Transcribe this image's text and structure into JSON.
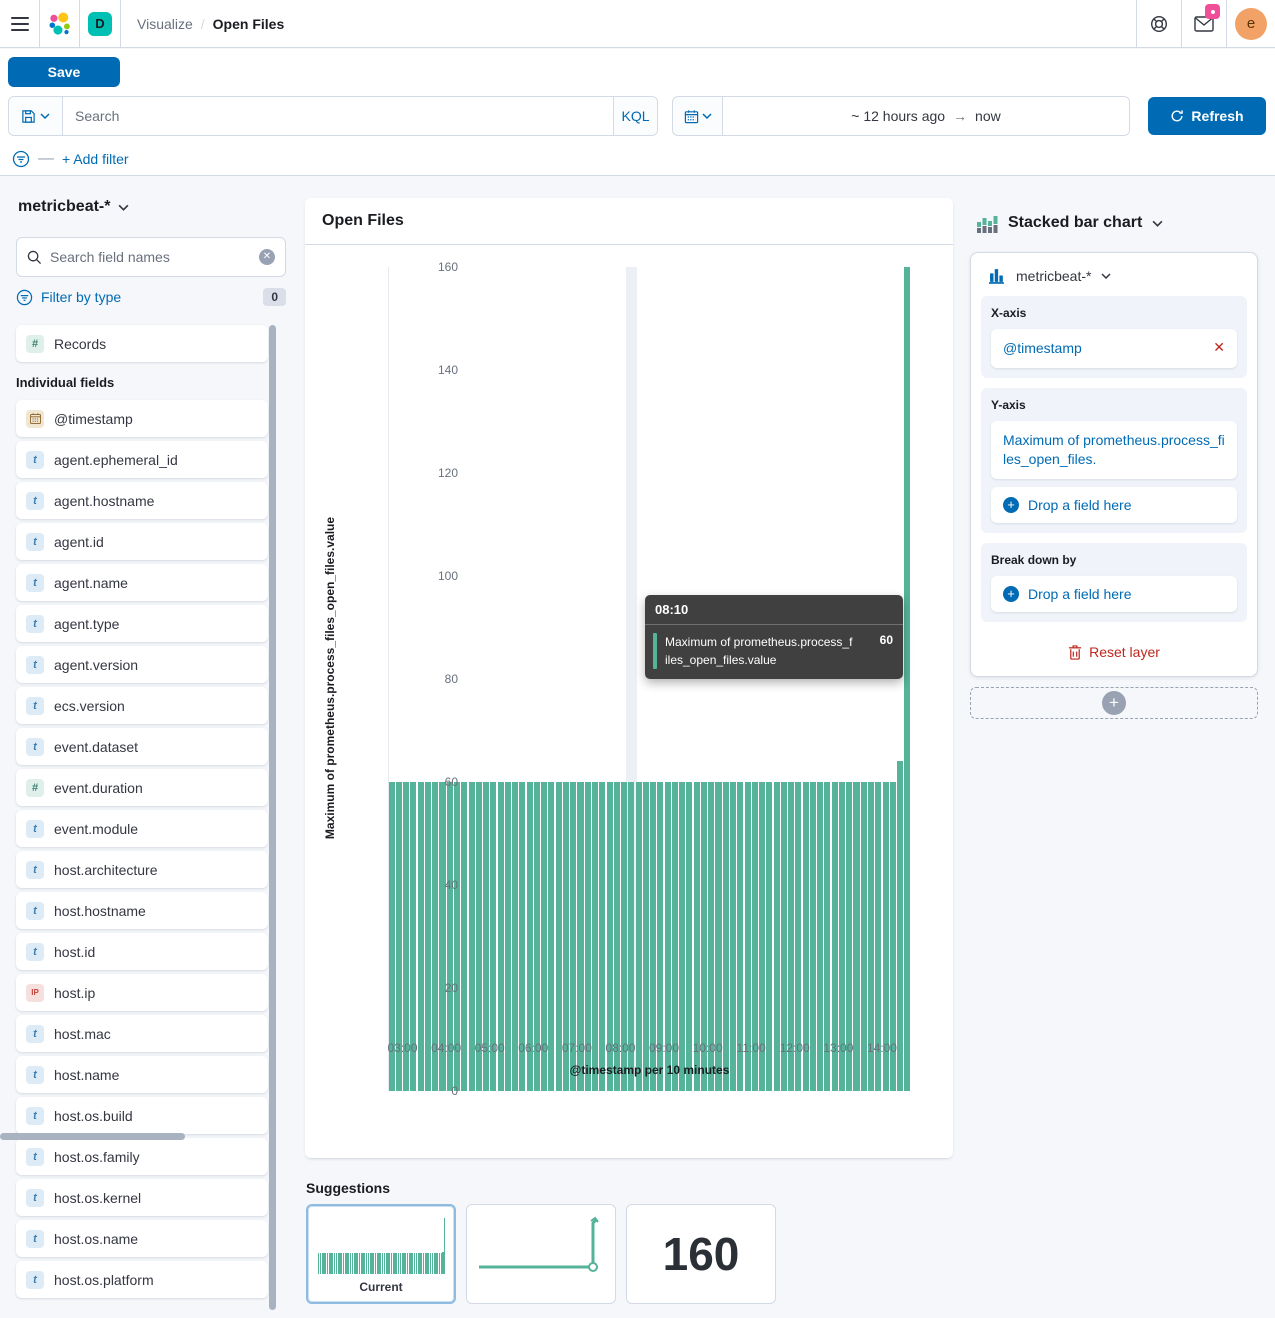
{
  "header": {
    "space_badge": "D",
    "breadcrumb": {
      "parent": "Visualize",
      "separator": "/",
      "current": "Open Files"
    },
    "avatar_initial": "e"
  },
  "toolbar": {
    "save_label": "Save",
    "search_placeholder": "Search",
    "kql_label": "KQL",
    "time_from": "~ 12 hours ago",
    "time_arrow": "→",
    "time_to": "now",
    "refresh_label": "Refresh",
    "add_filter_label": "+ Add filter"
  },
  "sidebar": {
    "index_pattern": "metricbeat-*",
    "search_placeholder": "Search field names",
    "filter_by_type_label": "Filter by type",
    "filter_count": "0",
    "records_label": "Records",
    "section_label": "Individual fields",
    "fields": [
      {
        "name": "@timestamp",
        "type": "date"
      },
      {
        "name": "agent.ephemeral_id",
        "type": "string"
      },
      {
        "name": "agent.hostname",
        "type": "string"
      },
      {
        "name": "agent.id",
        "type": "string"
      },
      {
        "name": "agent.name",
        "type": "string"
      },
      {
        "name": "agent.type",
        "type": "string"
      },
      {
        "name": "agent.version",
        "type": "string"
      },
      {
        "name": "ecs.version",
        "type": "string"
      },
      {
        "name": "event.dataset",
        "type": "string"
      },
      {
        "name": "event.duration",
        "type": "number"
      },
      {
        "name": "event.module",
        "type": "string"
      },
      {
        "name": "host.architecture",
        "type": "string"
      },
      {
        "name": "host.hostname",
        "type": "string"
      },
      {
        "name": "host.id",
        "type": "string"
      },
      {
        "name": "host.ip",
        "type": "ip"
      },
      {
        "name": "host.mac",
        "type": "string"
      },
      {
        "name": "host.name",
        "type": "string"
      },
      {
        "name": "host.os.build",
        "type": "string"
      },
      {
        "name": "host.os.family",
        "type": "string"
      },
      {
        "name": "host.os.kernel",
        "type": "string"
      },
      {
        "name": "host.os.name",
        "type": "string"
      },
      {
        "name": "host.os.platform",
        "type": "string"
      }
    ]
  },
  "chart": {
    "panel_title": "Open Files",
    "tooltip": {
      "time": "08:10",
      "series": "Maximum of prometheus.process_files_open_files.value",
      "value": "60"
    }
  },
  "chart_data": {
    "type": "bar",
    "title": "Open Files",
    "xlabel": "@timestamp per 10 minutes",
    "ylabel": "Maximum of prometheus.process_files_open_files.value",
    "ylim": [
      0,
      160
    ],
    "yticks": [
      0,
      20,
      40,
      60,
      80,
      100,
      120,
      140,
      160
    ],
    "x_start": "02:40",
    "x_interval_minutes": 10,
    "xticks": [
      {
        "label": "03:00",
        "index": 2
      },
      {
        "label": "04:00",
        "index": 8
      },
      {
        "label": "05:00",
        "index": 14
      },
      {
        "label": "06:00",
        "index": 20
      },
      {
        "label": "07:00",
        "index": 26
      },
      {
        "label": "08:00",
        "index": 32
      },
      {
        "label": "09:00",
        "index": 38
      },
      {
        "label": "10:00",
        "index": 44
      },
      {
        "label": "11:00",
        "index": 50
      },
      {
        "label": "12:00",
        "index": 56
      },
      {
        "label": "13:00",
        "index": 62
      },
      {
        "label": "14:00",
        "index": 68
      }
    ],
    "hovered_index": 33,
    "bar_color": "#54B399",
    "values": [
      60,
      60,
      60,
      60,
      60,
      60,
      60,
      60,
      60,
      60,
      60,
      60,
      60,
      60,
      60,
      60,
      60,
      60,
      60,
      60,
      60,
      60,
      60,
      60,
      60,
      60,
      60,
      60,
      60,
      60,
      60,
      60,
      60,
      60,
      60,
      60,
      60,
      60,
      60,
      60,
      60,
      60,
      60,
      60,
      60,
      60,
      60,
      60,
      60,
      60,
      60,
      60,
      60,
      60,
      60,
      60,
      60,
      60,
      60,
      60,
      60,
      60,
      60,
      60,
      60,
      60,
      60,
      60,
      60,
      60,
      64,
      160
    ]
  },
  "config_panel": {
    "chart_type_label": "Stacked bar chart",
    "layer": {
      "index_pattern": "metricbeat-*",
      "x_axis_label": "X-axis",
      "x_field": "@timestamp",
      "remove_glyph": "✕",
      "y_axis_label": "Y-axis",
      "y_field": "Maximum of prometheus.process_files_open_files.",
      "y_drop_label": "Drop a field here",
      "break_down_label": "Break down by",
      "break_drop_label": "Drop a field here",
      "reset_label": "Reset layer"
    }
  },
  "suggestions": {
    "title": "Suggestions",
    "current_label": "Current",
    "metric_value": "160"
  },
  "colors": {
    "primary_blue": "#006BB4",
    "bar_teal": "#54B399",
    "danger_red": "#BD271E",
    "accent_pink": "#F04E98",
    "space_teal": "#00BFB3"
  }
}
